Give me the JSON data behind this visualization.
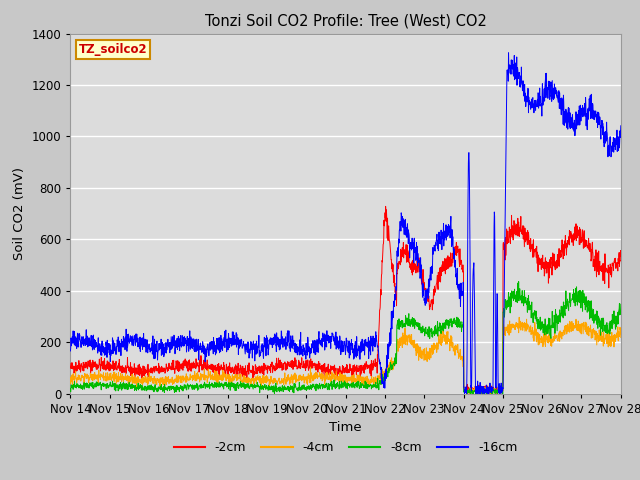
{
  "title": "Tonzi Soil CO2 Profile: Tree (West) CO2",
  "ylabel": "Soil CO2 (mV)",
  "xlabel": "Time",
  "ylim": [
    0,
    1400
  ],
  "colors": {
    "red": "#ff0000",
    "orange": "#ffa500",
    "green": "#00bb00",
    "blue": "#0000ff"
  },
  "legend_label": "TZ_soilco2",
  "series_labels": [
    "-2cm",
    "-4cm",
    "-8cm",
    "-16cm"
  ],
  "xtick_labels": [
    "Nov 14",
    "Nov 15",
    "Nov 16",
    "Nov 17",
    "Nov 18",
    "Nov 19",
    "Nov 20",
    "Nov 21",
    "Nov 22",
    "Nov 23",
    "Nov 24",
    "Nov 25",
    "Nov 26",
    "Nov 27",
    "Nov 28"
  ],
  "n_points": 2016,
  "background_color": "#dcdcdc",
  "plot_bg_color": "#dcdcdc",
  "fig_bg_color": "#c8c8c8"
}
